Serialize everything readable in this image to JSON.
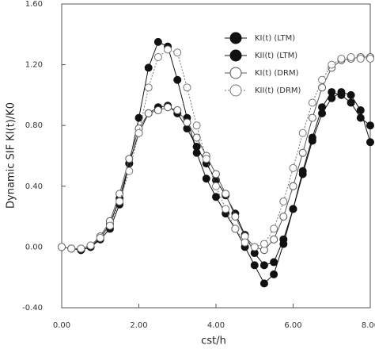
{
  "chart_data": {
    "type": "line",
    "x_label": "cst/h",
    "y_label": "Dynamic SIF KI(t)/K0",
    "xlim": [
      0,
      8
    ],
    "ylim": [
      -0.4,
      1.6
    ],
    "xticks": [
      {
        "value": 0,
        "label": "0.00"
      },
      {
        "value": 2,
        "label": "2.00"
      },
      {
        "value": 4,
        "label": "4.00"
      },
      {
        "value": 6,
        "label": "6.00"
      },
      {
        "value": 8,
        "label": "8.00"
      }
    ],
    "yticks": [
      {
        "value": -0.4,
        "label": "-0.40"
      },
      {
        "value": 0,
        "label": "0.00"
      },
      {
        "value": 0.4,
        "label": "0.40"
      },
      {
        "value": 0.8,
        "label": "0.80"
      },
      {
        "value": 1.2,
        "label": "1.20"
      },
      {
        "value": 1.6,
        "label": "1.60"
      }
    ],
    "x": [
      0,
      0.25,
      0.5,
      0.75,
      1,
      1.25,
      1.5,
      1.75,
      2,
      2.25,
      2.5,
      2.75,
      3,
      3.25,
      3.5,
      3.75,
      4,
      4.25,
      4.5,
      4.75,
      5,
      5.25,
      5.5,
      5.75,
      6,
      6.25,
      6.5,
      6.75,
      7,
      7.25,
      7.5,
      7.75,
      8
    ],
    "series": [
      {
        "name": "KI(t) (LTM)",
        "color": "#111111",
        "marker": "filled",
        "dash": "solid",
        "values": [
          0,
          -0.01,
          -0.02,
          0,
          0.06,
          0.15,
          0.32,
          0.55,
          0.75,
          0.88,
          0.92,
          0.93,
          0.88,
          0.78,
          0.66,
          0.55,
          0.44,
          0.34,
          0.22,
          0.08,
          -0.04,
          -0.12,
          -0.1,
          0.05,
          0.25,
          0.48,
          0.7,
          0.88,
          0.98,
          1.02,
          1.0,
          0.9,
          0.69
        ]
      },
      {
        "name": "KII(t) (LTM)",
        "color": "#111111",
        "marker": "filled",
        "dash": "solid",
        "values": [
          0,
          -0.01,
          -0.02,
          0,
          0.05,
          0.12,
          0.28,
          0.55,
          0.85,
          1.18,
          1.35,
          1.32,
          1.1,
          0.85,
          0.62,
          0.45,
          0.33,
          0.22,
          0.12,
          0,
          -0.12,
          -0.24,
          -0.18,
          0.02,
          0.25,
          0.5,
          0.72,
          0.92,
          1.02,
          1.0,
          0.95,
          0.85,
          0.8
        ]
      },
      {
        "name": "KI(t) (DRM)",
        "color": "#555555",
        "marker": "open",
        "dash": "solid",
        "values": [
          0,
          -0.01,
          -0.01,
          0.01,
          0.07,
          0.17,
          0.35,
          0.58,
          0.78,
          0.88,
          0.9,
          0.92,
          0.9,
          0.82,
          0.72,
          0.6,
          0.48,
          0.35,
          0.2,
          0.07,
          0,
          -0.02,
          0.05,
          0.2,
          0.4,
          0.62,
          0.85,
          1.05,
          1.18,
          1.23,
          1.24,
          1.25,
          1.25
        ]
      },
      {
        "name": "KII(t) (DRM)",
        "color": "#777777",
        "marker": "open",
        "dash": "dotted",
        "values": [
          0,
          -0.01,
          -0.01,
          0.01,
          0.06,
          0.14,
          0.3,
          0.5,
          0.75,
          1.05,
          1.25,
          1.3,
          1.28,
          1.05,
          0.8,
          0.58,
          0.4,
          0.25,
          0.12,
          0.03,
          0,
          0.02,
          0.12,
          0.3,
          0.52,
          0.75,
          0.95,
          1.1,
          1.2,
          1.24,
          1.25,
          1.24,
          1.24
        ]
      }
    ]
  }
}
